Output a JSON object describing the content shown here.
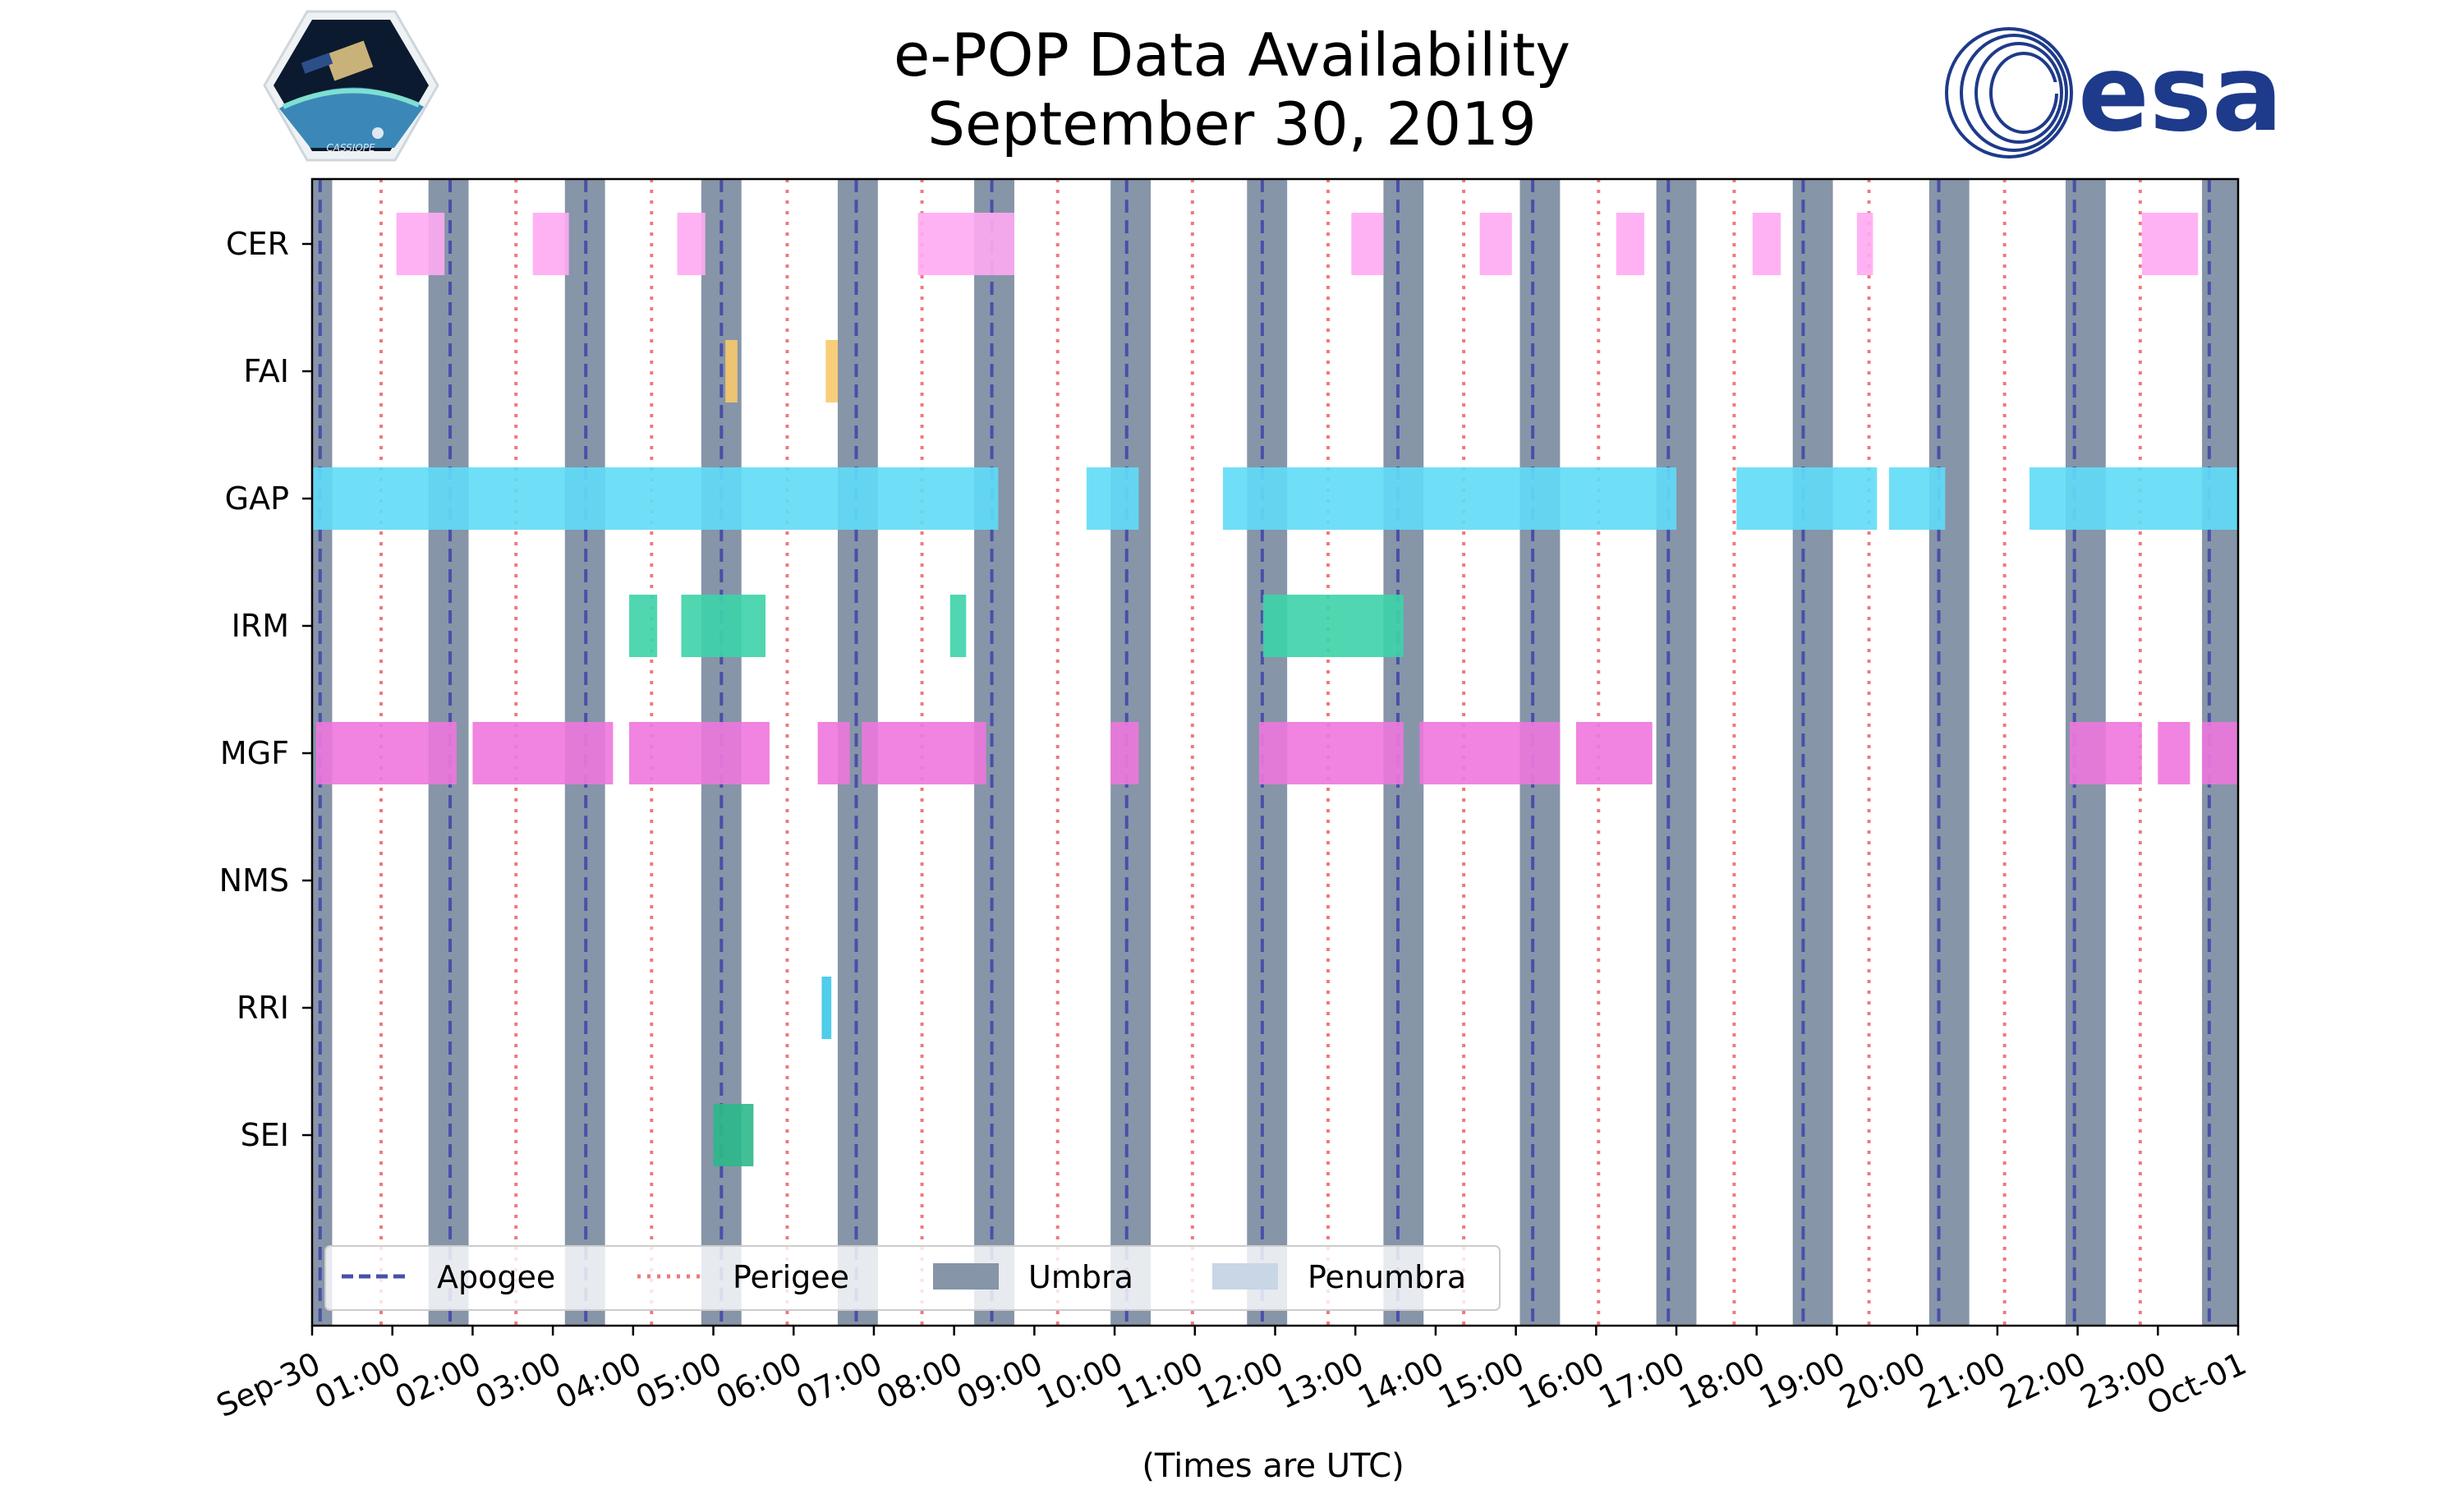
{
  "title": {
    "line1": "e-POP Data Availability",
    "line2": "September 30, 2019"
  },
  "logos": {
    "left_text": "CASSIOPE",
    "right_text": "esa",
    "left_icon": "cassiope-mission-logo",
    "right_icon": "esa-logo"
  },
  "colors": {
    "umbra": "#8695a8",
    "penumbra": "#c8d6e6",
    "apogee": "#4a4fa8",
    "perigee": "#f07a7a",
    "CER": "#ffaaf2",
    "FAI": "#f7c96b",
    "GAP": "#5fdcf7",
    "IRM": "#3dd3a8",
    "MGF": "#ee77dd",
    "NMS": "#999999",
    "RRI": "#3cc8e8",
    "SEI": "#2cb88a"
  },
  "chart_data": {
    "type": "timeline",
    "title": "e-POP Data Availability September 30, 2019",
    "xlabel": "(Times are UTC)",
    "x_unit": "hours since 2019-09-30 00:00 UTC",
    "xlim": [
      0,
      24
    ],
    "x_ticks": [
      0,
      1,
      2,
      3,
      4,
      5,
      6,
      7,
      8,
      9,
      10,
      11,
      12,
      13,
      14,
      15,
      16,
      17,
      18,
      19,
      20,
      21,
      22,
      23,
      24
    ],
    "x_tick_labels": [
      "Sep-30",
      "01:00",
      "02:00",
      "03:00",
      "04:00",
      "05:00",
      "06:00",
      "07:00",
      "08:00",
      "09:00",
      "10:00",
      "11:00",
      "12:00",
      "13:00",
      "14:00",
      "15:00",
      "16:00",
      "17:00",
      "18:00",
      "19:00",
      "20:00",
      "21:00",
      "22:00",
      "23:00",
      "Oct-01"
    ],
    "instruments": [
      "CER",
      "FAI",
      "GAP",
      "IRM",
      "MGF",
      "NMS",
      "RRI",
      "SEI"
    ],
    "intervals": {
      "CER": [
        [
          1.05,
          1.65
        ],
        [
          2.75,
          3.2
        ],
        [
          4.55,
          4.9
        ],
        [
          7.55,
          8.75
        ],
        [
          12.95,
          13.35
        ],
        [
          14.55,
          14.95
        ],
        [
          16.25,
          16.6
        ],
        [
          17.95,
          18.3
        ],
        [
          19.25,
          19.45
        ],
        [
          22.8,
          23.5
        ]
      ],
      "FAI": [
        [
          5.15,
          5.3
        ],
        [
          6.4,
          6.55
        ]
      ],
      "GAP": [
        [
          0,
          8.55
        ],
        [
          9.65,
          10.3
        ],
        [
          11.35,
          17.0
        ],
        [
          17.75,
          19.5
        ],
        [
          19.65,
          20.35
        ],
        [
          21.4,
          24.0
        ]
      ],
      "IRM": [
        [
          3.95,
          4.3
        ],
        [
          4.6,
          5.65
        ],
        [
          7.95,
          8.15
        ],
        [
          11.85,
          13.6
        ]
      ],
      "MGF": [
        [
          0.05,
          1.8
        ],
        [
          2.0,
          3.75
        ],
        [
          3.95,
          5.7
        ],
        [
          6.3,
          6.7
        ],
        [
          6.85,
          8.4
        ],
        [
          9.95,
          10.3
        ],
        [
          11.8,
          13.6
        ],
        [
          13.8,
          15.55
        ],
        [
          15.75,
          16.7
        ],
        [
          21.9,
          22.8
        ],
        [
          23.0,
          23.4
        ],
        [
          23.55,
          24.0
        ]
      ],
      "NMS": [],
      "RRI": [
        [
          6.35,
          6.47
        ]
      ],
      "SEI": [
        [
          5.0,
          5.5
        ]
      ]
    },
    "umbra": [
      [
        0,
        0.25
      ],
      [
        1.45,
        1.95
      ],
      [
        3.15,
        3.65
      ],
      [
        4.85,
        5.35
      ],
      [
        6.55,
        7.05
      ],
      [
        8.25,
        8.75
      ],
      [
        9.95,
        10.45
      ],
      [
        11.65,
        12.15
      ],
      [
        13.35,
        13.85
      ],
      [
        15.05,
        15.55
      ],
      [
        16.75,
        17.25
      ],
      [
        18.45,
        18.95
      ],
      [
        20.15,
        20.65
      ],
      [
        21.85,
        22.35
      ],
      [
        23.55,
        24.05
      ]
    ],
    "apogee": [
      0.1,
      1.72,
      3.41,
      5.1,
      6.78,
      8.47,
      10.15,
      11.84,
      13.53,
      15.21,
      16.9,
      18.58,
      20.27,
      21.96,
      23.64
    ],
    "perigee": [
      0.86,
      2.54,
      4.23,
      5.92,
      7.6,
      9.29,
      10.97,
      12.66,
      14.35,
      16.03,
      17.72,
      19.4,
      21.09,
      22.78
    ],
    "legend": {
      "position": "lower-left",
      "entries": [
        "Apogee",
        "Perigee",
        "Umbra",
        "Penumbra"
      ]
    }
  }
}
